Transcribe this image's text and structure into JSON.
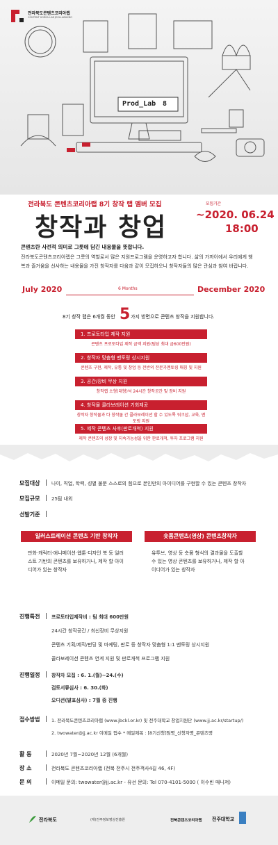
{
  "header": {
    "logo_name": "전라북도콘텐츠코리아랩",
    "logo_english": "CONTENT KOREA LAB JEOLLABUKDO",
    "subtitle": "전라북도 콘텐츠코리아랩 8기 창작 랩 멤버 모집",
    "title": "창작과 창업",
    "deadline_label": "모집기간",
    "deadline_date": "~2020. 06.24",
    "deadline_time": "18:00"
  },
  "illustration": {
    "monitor_label": "Prod_Lab",
    "monitor_number": "8"
  },
  "intro": {
    "lead": "콘텐츠란 사전적 의미로 그릇에 담긴 내용물을 뜻합니다.",
    "body": "전라북도콘텐츠코리아랩은 그릇의 역할로서 많은 지원프로그램을 운영하고자 합니다. 삶의 가까이에서 우리에게 행복과 즐거움을 선사하는 내용물을 가진 창작자를 다음과 같이 모집하오니 창작자들의 많은 관심과 참여 바랍니다."
  },
  "timeline": {
    "start": "July 2020",
    "duration": "6 Months",
    "end": "December 2020"
  },
  "support": {
    "intro_before": "8기 창작 랩은 6개월 동안",
    "count": "5",
    "intro_after": "가지 방면으로 콘텐츠 창작을 지원합니다.",
    "items": [
      {
        "title": "1. 프로토타입 제작 지원",
        "desc": "콘텐츠 프로토타입 제작 금액 지원(팀당 최대 금600만원)"
      },
      {
        "title": "2. 창작자 맞춤형 멘토링 상시지원",
        "desc": "콘텐츠 구현, 제작, 유통 및 창업 등 전반의 전문가멘토링 매칭 및 지원"
      },
      {
        "title": "3. 공간/장비 무상 지원",
        "desc": "창작랩 소형(대형)석 24시간 창작공간 및 장비 지원"
      },
      {
        "title": "4. 창작물 콜라보레이션 기회제공",
        "desc": "창작자 창작물과 타 창작물 간 콜라보레이션 할 수 있도록 워크샵, 교육, 멘토링 지원"
      },
      {
        "title": "5. 제작 콘텐츠 사후(판로개척) 지원",
        "desc": "제작 콘텐츠의 성장 및 지속가능성을 위한 판로개척, 투자 프로그램 지원"
      }
    ]
  },
  "info": {
    "target": {
      "label": "모집대상",
      "value": "나이, 직업, 학력, 성별 불문 스스로의 힘으로 본인만의 아이디어를 구현할 수 있는 콘텐츠 창작자"
    },
    "scale": {
      "label": "모집규모",
      "value": "25팀 내외"
    },
    "criteria": {
      "label": "선발기준"
    }
  },
  "categories": [
    {
      "title": "일러스트레이션 콘텐츠 기반 창작자",
      "text": "만화·캐릭터·애니메이션·웹툰·디자인 북 등 일러스트 기반의 콘텐츠를 보유하거나, 제작 할 아이디어가 있는 창작자"
    },
    {
      "title": "숏폼콘텐츠(영상) 콘텐츠창작자",
      "text": "유투브, 영상 등 숏폼 형식의 결과물을 도출할 수 있는 영상 콘텐츠를 보유하거나, 제작 할 아이디어가 있는 창작자"
    }
  ],
  "benefits": {
    "label": "진행특전",
    "items": [
      "프로토타입제작비 : 팀 최대 600만원",
      "24시간 창작공간 / 최신장비 무상지원",
      "콘텐츠 기획/제작/펀딩 및 마케팅, 판로 등 창작자 맞춤형 1:1 멘토링 상시지원",
      "콜라보레이션 콘텐츠 연계 지원 및 판로개척 프로그램 지원"
    ]
  },
  "schedule": {
    "label": "진행일정",
    "items": [
      "창작자 모집 : 6. 1.(월)~24.(수)",
      "검토서류심사 : 6. 30.(화)",
      "오디션(발표심사) : 7월 중 진행"
    ]
  },
  "apply": {
    "label": "접수방법",
    "items": [
      "1. 전라북도콘텐츠코리아랩 (www.jbckl.or.kr) 및 전주대학교 창업지원단 (www.jj.ac.kr/startup/)",
      "2. twowater@jj.ac.kr 이메일 접수 * 메일제목 : [8기신청]팀명_신청자명_콘텐츠명"
    ]
  },
  "activity": {
    "label": "활 동",
    "value": "2020년 7월~2020년 12월 (6개월)"
  },
  "place": {
    "label": "장 소",
    "value": "전라북도 콘텐츠코리아랩 (전북 전주시 전주객사4길 46, 4F)"
  },
  "contact": {
    "label": "문 의",
    "value": "이메일 문의: twowater@jj.ac.kr - 유선 문의: Tel 070-4101-5000 ( 이수빈 매니저)"
  },
  "footer": [
    "전라북도",
    "(재)전주정보영상진흥원",
    "전북콘텐츠코리아랩",
    "전주대학교"
  ]
}
